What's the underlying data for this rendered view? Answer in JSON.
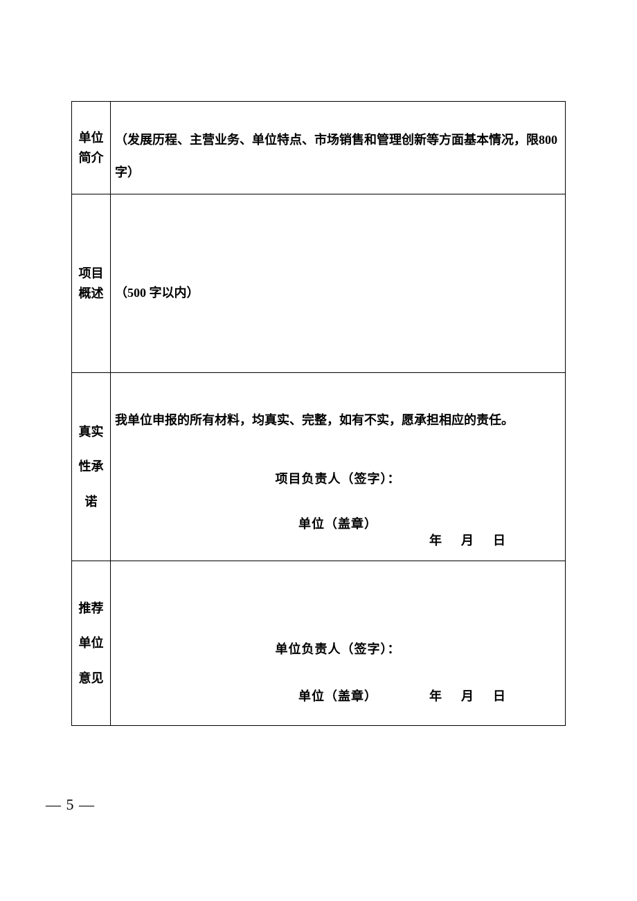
{
  "rows": {
    "r1": {
      "label": "单位简介",
      "content": "（发展历程、主营业务、单位特点、市场销售和管理创新等方面基本情况，限800 字）"
    },
    "r2": {
      "label": "项目概述",
      "content": "（500 字以内）"
    },
    "r3": {
      "label": "真实性承诺",
      "statement": "我单位申报的所有材料，均真实、完整，如有不实，愿承担相应的责任。",
      "sigPerson": "项目负责人（签字）：",
      "sigStamp": "单位（盖章）",
      "dateY": "年",
      "dateM": "月",
      "dateD": "日"
    },
    "r4": {
      "label": "推荐单位意见",
      "sigPerson": "单位负责人（签字）：",
      "sigStamp": "单位（盖章）",
      "dateY": "年",
      "dateM": "月",
      "dateD": "日"
    }
  },
  "pageNumber": "― 5 ―",
  "colors": {
    "border": "#000000",
    "background": "#ffffff",
    "text": "#000000"
  }
}
